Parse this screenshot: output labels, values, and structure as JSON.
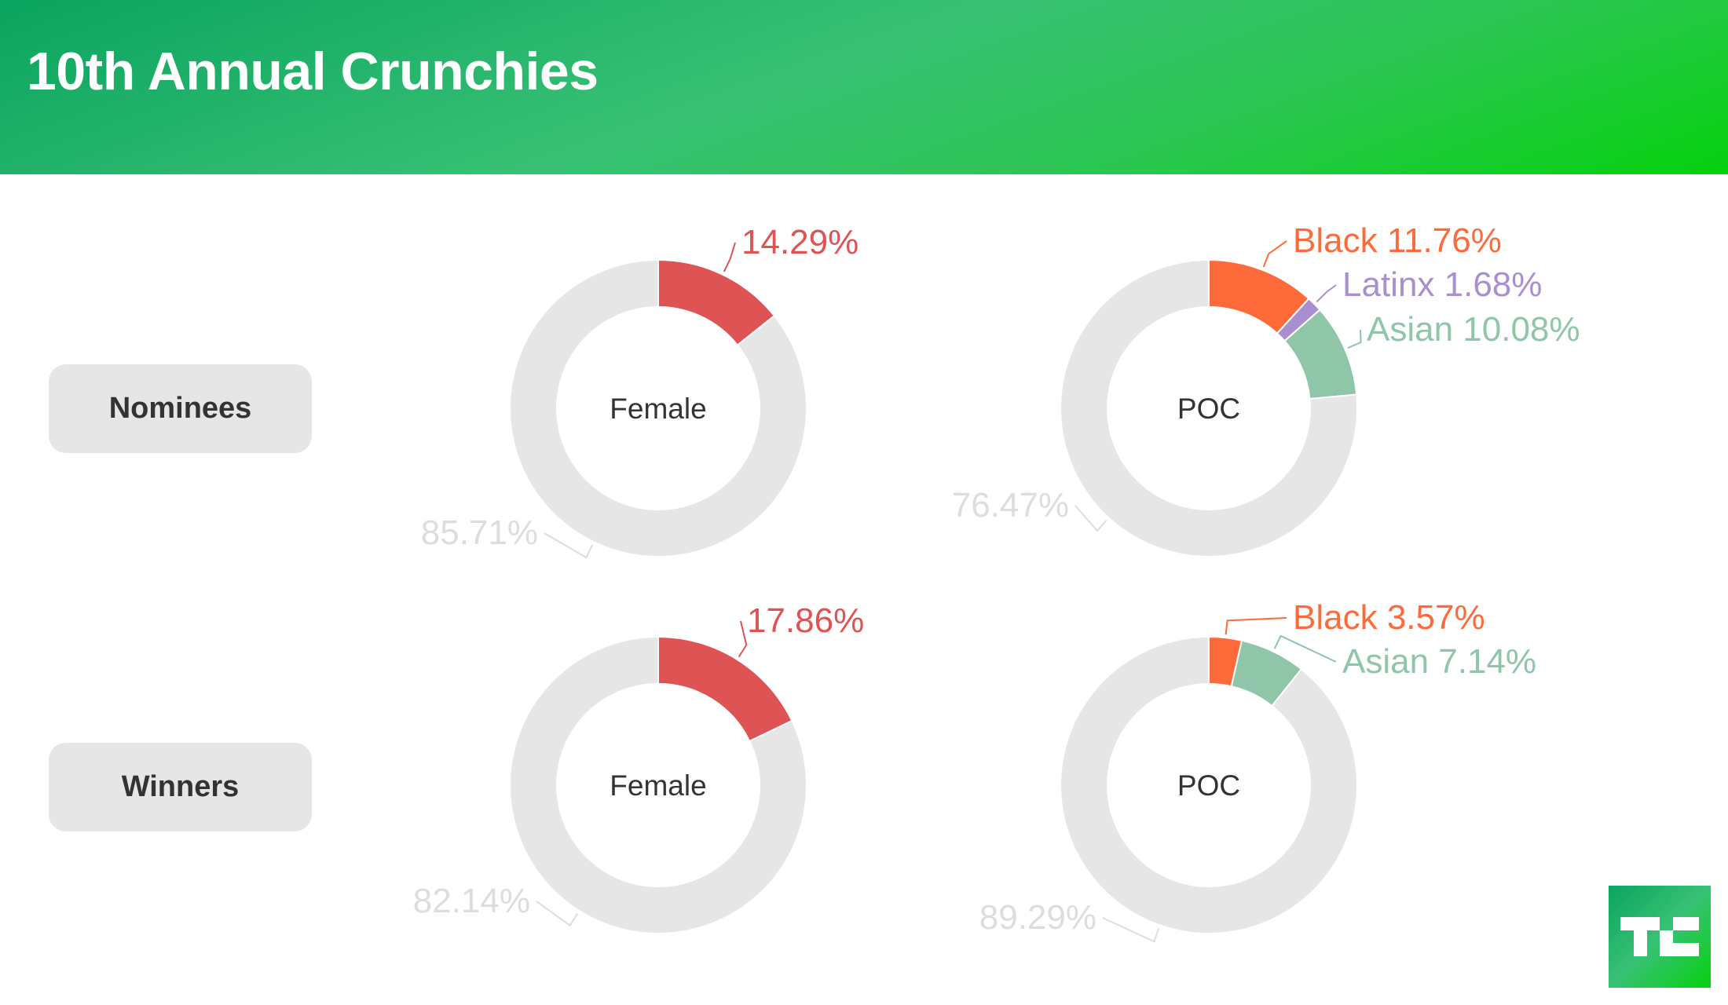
{
  "header": {
    "title": "10th Annual Crunchies"
  },
  "rows": [
    {
      "label": "Nominees"
    },
    {
      "label": "Winners"
    }
  ],
  "logo": {
    "text": "TC"
  },
  "colors": {
    "female": "#de5353",
    "black": "#ff6a3a",
    "latinx": "#a98fcf",
    "asian": "#8fc5a8",
    "other": "#e6e6e6",
    "other_label": "#dddddd"
  },
  "chart_data": [
    {
      "type": "pie",
      "title": "Nominees - Female",
      "center_label": "Female",
      "slices": [
        {
          "name": "Female",
          "value": 14.29,
          "label": "14.29%",
          "color": "#de5353"
        },
        {
          "name": "Other",
          "value": 85.71,
          "label": "85.71%",
          "color": "#e6e6e6"
        }
      ]
    },
    {
      "type": "pie",
      "title": "Nominees - POC",
      "center_label": "POC",
      "slices": [
        {
          "name": "Black",
          "value": 11.76,
          "label": "Black 11.76%",
          "color": "#ff6a3a"
        },
        {
          "name": "Latinx",
          "value": 1.68,
          "label": "Latinx 1.68%",
          "color": "#a98fcf"
        },
        {
          "name": "Asian",
          "value": 10.08,
          "label": "Asian 10.08%",
          "color": "#8fc5a8"
        },
        {
          "name": "Other",
          "value": 76.47,
          "label": "76.47%",
          "color": "#e6e6e6"
        }
      ]
    },
    {
      "type": "pie",
      "title": "Winners - Female",
      "center_label": "Female",
      "slices": [
        {
          "name": "Female",
          "value": 17.86,
          "label": "17.86%",
          "color": "#de5353"
        },
        {
          "name": "Other",
          "value": 82.14,
          "label": "82.14%",
          "color": "#e6e6e6"
        }
      ]
    },
    {
      "type": "pie",
      "title": "Winners - POC",
      "center_label": "POC",
      "slices": [
        {
          "name": "Black",
          "value": 3.57,
          "label": "Black 3.57%",
          "color": "#ff6a3a"
        },
        {
          "name": "Asian",
          "value": 7.14,
          "label": "Asian 7.14%",
          "color": "#8fc5a8"
        },
        {
          "name": "Other",
          "value": 89.29,
          "label": "89.29%",
          "color": "#e6e6e6"
        }
      ]
    }
  ]
}
